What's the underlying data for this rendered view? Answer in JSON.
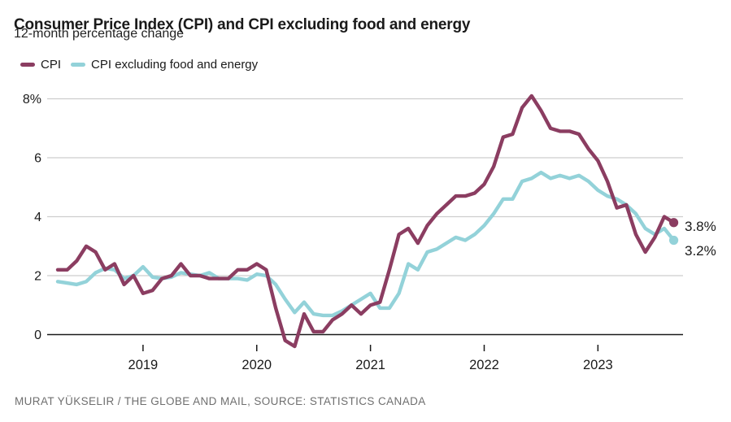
{
  "header": {
    "title": "Consumer Price Index (CPI) and CPI excluding food and energy",
    "subtitle": "12-month percentage change"
  },
  "source": "MURAT YÜKSELIR / THE GLOBE AND MAIL, SOURCE: STATISTICS CANADA",
  "colors": {
    "cpi_line": "#8b3d61",
    "core_cpi_line": "#93d2d9",
    "gridline": "#cdcdcd",
    "zero_line": "#1a1a1a",
    "axis_text": "#1a1a1a",
    "source_text": "#6f6f6f"
  },
  "chart_data": {
    "type": "line",
    "title": "Consumer Price Index (CPI) and CPI excluding food and energy",
    "subtitle": "12-month percentage change",
    "x_start_month": "Apr 2018",
    "x_end_month": "Sep 2023",
    "x_frequency": "monthly",
    "ylim": [
      -0.6,
      8.4
    ],
    "grid": "horizontal",
    "legend_position": "top-left",
    "y_ticks": [
      {
        "value": 0,
        "label": "0"
      },
      {
        "value": 2,
        "label": "2"
      },
      {
        "value": 4,
        "label": "4"
      },
      {
        "value": 6,
        "label": "6"
      },
      {
        "value": 8,
        "label": "8%"
      }
    ],
    "x_ticks": [
      {
        "month_index": 9,
        "label": "2019"
      },
      {
        "month_index": 21,
        "label": "2020"
      },
      {
        "month_index": 33,
        "label": "2021"
      },
      {
        "month_index": 45,
        "label": "2022"
      },
      {
        "month_index": 57,
        "label": "2023"
      }
    ],
    "series": [
      {
        "name": "CPI",
        "color": "#8b3d61",
        "end_label": "3.8%",
        "values": [
          2.2,
          2.2,
          2.5,
          3.0,
          2.8,
          2.2,
          2.4,
          1.7,
          2.0,
          1.4,
          1.5,
          1.9,
          2.0,
          2.4,
          2.0,
          2.0,
          1.9,
          1.9,
          1.9,
          2.2,
          2.2,
          2.4,
          2.2,
          0.9,
          -0.2,
          -0.4,
          0.7,
          0.1,
          0.1,
          0.5,
          0.7,
          1.0,
          0.7,
          1.0,
          1.1,
          2.2,
          3.4,
          3.6,
          3.1,
          3.7,
          4.1,
          4.4,
          4.7,
          4.7,
          4.8,
          5.1,
          5.7,
          6.7,
          6.8,
          7.7,
          8.1,
          7.6,
          7.0,
          6.9,
          6.9,
          6.8,
          6.3,
          5.9,
          5.2,
          4.3,
          4.4,
          3.4,
          2.8,
          3.3,
          4.0,
          3.8
        ]
      },
      {
        "name": "CPI excluding food and energy",
        "color": "#93d2d9",
        "end_label": "3.2%",
        "values": [
          1.8,
          1.75,
          1.7,
          1.8,
          2.1,
          2.25,
          2.2,
          1.9,
          2.0,
          2.3,
          1.95,
          1.9,
          1.95,
          2.1,
          2.05,
          2.0,
          2.1,
          1.9,
          1.9,
          1.9,
          1.85,
          2.05,
          2.0,
          1.7,
          1.2,
          0.75,
          1.1,
          0.7,
          0.65,
          0.65,
          0.8,
          1.0,
          1.2,
          1.4,
          0.9,
          0.9,
          1.4,
          2.4,
          2.2,
          2.8,
          2.9,
          3.1,
          3.3,
          3.2,
          3.4,
          3.7,
          4.1,
          4.6,
          4.6,
          5.2,
          5.3,
          5.5,
          5.3,
          5.4,
          5.3,
          5.4,
          5.2,
          4.9,
          4.7,
          4.6,
          4.4,
          4.1,
          3.6,
          3.4,
          3.6,
          3.2
        ]
      }
    ]
  }
}
